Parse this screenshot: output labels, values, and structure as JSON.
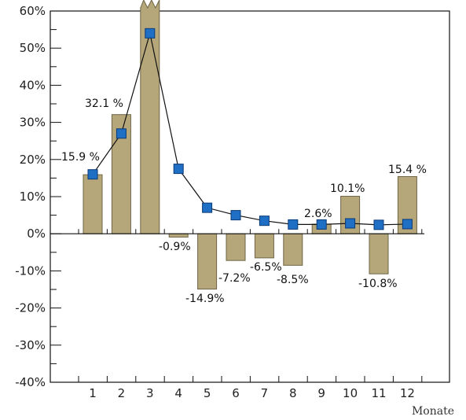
{
  "chart_data": {
    "type": "bar",
    "categories": [
      "1",
      "2",
      "3",
      "4",
      "5",
      "6",
      "7",
      "8",
      "9",
      "10",
      "11",
      "12"
    ],
    "series": [
      {
        "type": "bar",
        "values": [
          15.9,
          32.1,
          64.0,
          -0.9,
          -14.9,
          -7.2,
          -6.5,
          -8.5,
          2.6,
          10.1,
          -10.8,
          15.4
        ]
      },
      {
        "type": "line",
        "values": [
          16.0,
          27.0,
          54.0,
          17.5,
          7.0,
          5.0,
          3.5,
          2.5,
          2.5,
          2.8,
          2.4,
          2.6
        ]
      }
    ],
    "data_labels": [
      "15.9 %",
      "32.1 %",
      "",
      "-0.9%",
      "-14.9%",
      "-7.2%",
      "-6.5%",
      "-8.5%",
      "2.6%",
      "10.1%",
      "-10.8%",
      "15.4 %"
    ],
    "y_tick_labels": [
      "60%",
      "50%",
      "40%",
      "30%",
      "20%",
      "10%",
      "0%",
      "-10%",
      "-20%",
      "-30%",
      "-40%"
    ],
    "y_tick_values": [
      60,
      50,
      40,
      30,
      20,
      10,
      0,
      -10,
      -20,
      -30,
      -40
    ],
    "xlabel": "Monate",
    "ylabel": "",
    "ylim": [
      -40,
      60
    ],
    "note": "bar 3 exceeds axis top (broken bar)",
    "colors": {
      "bar_fill": "#b5a77a",
      "bar_stroke": "#6e6546",
      "marker_fill": "#1f6fc4",
      "marker_stroke": "#0b3a78",
      "line": "#111111",
      "axis": "#111111"
    }
  }
}
